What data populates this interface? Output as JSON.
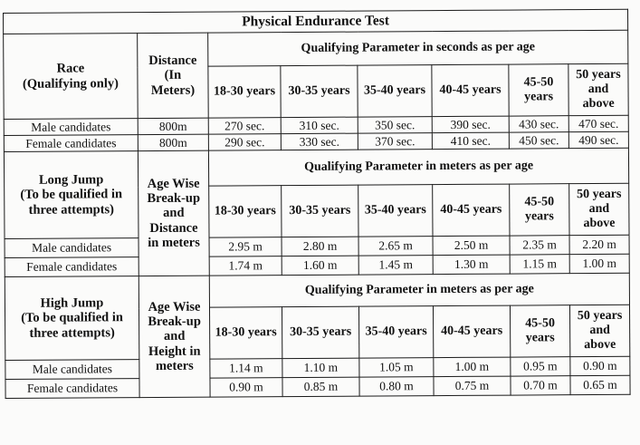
{
  "title": "Physical Endurance Test",
  "age_groups": [
    "18-30 years",
    "30-35 years",
    "35-40 years",
    "40-45 years",
    "45-50 years",
    "50 years and above"
  ],
  "race": {
    "label_line1": "Race",
    "label_line2": "(Qualifying only)",
    "distance_header_line1": "Distance",
    "distance_header_line2": "(In",
    "distance_header_line3": "Meters)",
    "parameter_header": "Qualifying Parameter in seconds as per age",
    "rows": [
      {
        "label": "Male candidates",
        "distance": "800m",
        "values": [
          "270 sec.",
          "310 sec.",
          "350 sec.",
          "390 sec.",
          "430 sec.",
          "470 sec."
        ]
      },
      {
        "label": "Female candidates",
        "distance": "800m",
        "values": [
          "290 sec.",
          "330 sec.",
          "370 sec.",
          "410 sec.",
          "450 sec.",
          "490 sec."
        ]
      }
    ]
  },
  "long_jump": {
    "label_line1": "Long Jump",
    "label_line2": "(To be qualified in",
    "label_line3": "three attempts)",
    "breakup_line1": "Age Wise",
    "breakup_line2": "Break-up",
    "breakup_line3": "and",
    "breakup_line4": "Distance",
    "breakup_line5": "in meters",
    "parameter_header": "Qualifying Parameter in meters as per age",
    "rows": [
      {
        "label": "Male candidates",
        "values": [
          "2.95 m",
          "2.80 m",
          "2.65 m",
          "2.50 m",
          "2.35 m",
          "2.20 m"
        ]
      },
      {
        "label": "Female candidates",
        "values": [
          "1.74 m",
          "1.60 m",
          "1.45 m",
          "1.30 m",
          "1.15 m",
          "1.00 m"
        ]
      }
    ]
  },
  "high_jump": {
    "label_line1": "High Jump",
    "label_line2": "(To be qualified in",
    "label_line3": "three attempts)",
    "breakup_line1": "Age Wise",
    "breakup_line2": "Break-up",
    "breakup_line3": "and",
    "breakup_line4": "Height in",
    "breakup_line5": "meters",
    "parameter_header": "Qualifying Parameter in meters as per age",
    "rows": [
      {
        "label": "Male candidates",
        "values": [
          "1.14 m",
          "1.10 m",
          "1.05 m",
          "1.00 m",
          "0.95 m",
          "0.90 m"
        ]
      },
      {
        "label": "Female candidates",
        "values": [
          "0.90 m",
          "0.85 m",
          "0.80 m",
          "0.75 m",
          "0.70 m",
          "0.65 m"
        ]
      }
    ]
  }
}
